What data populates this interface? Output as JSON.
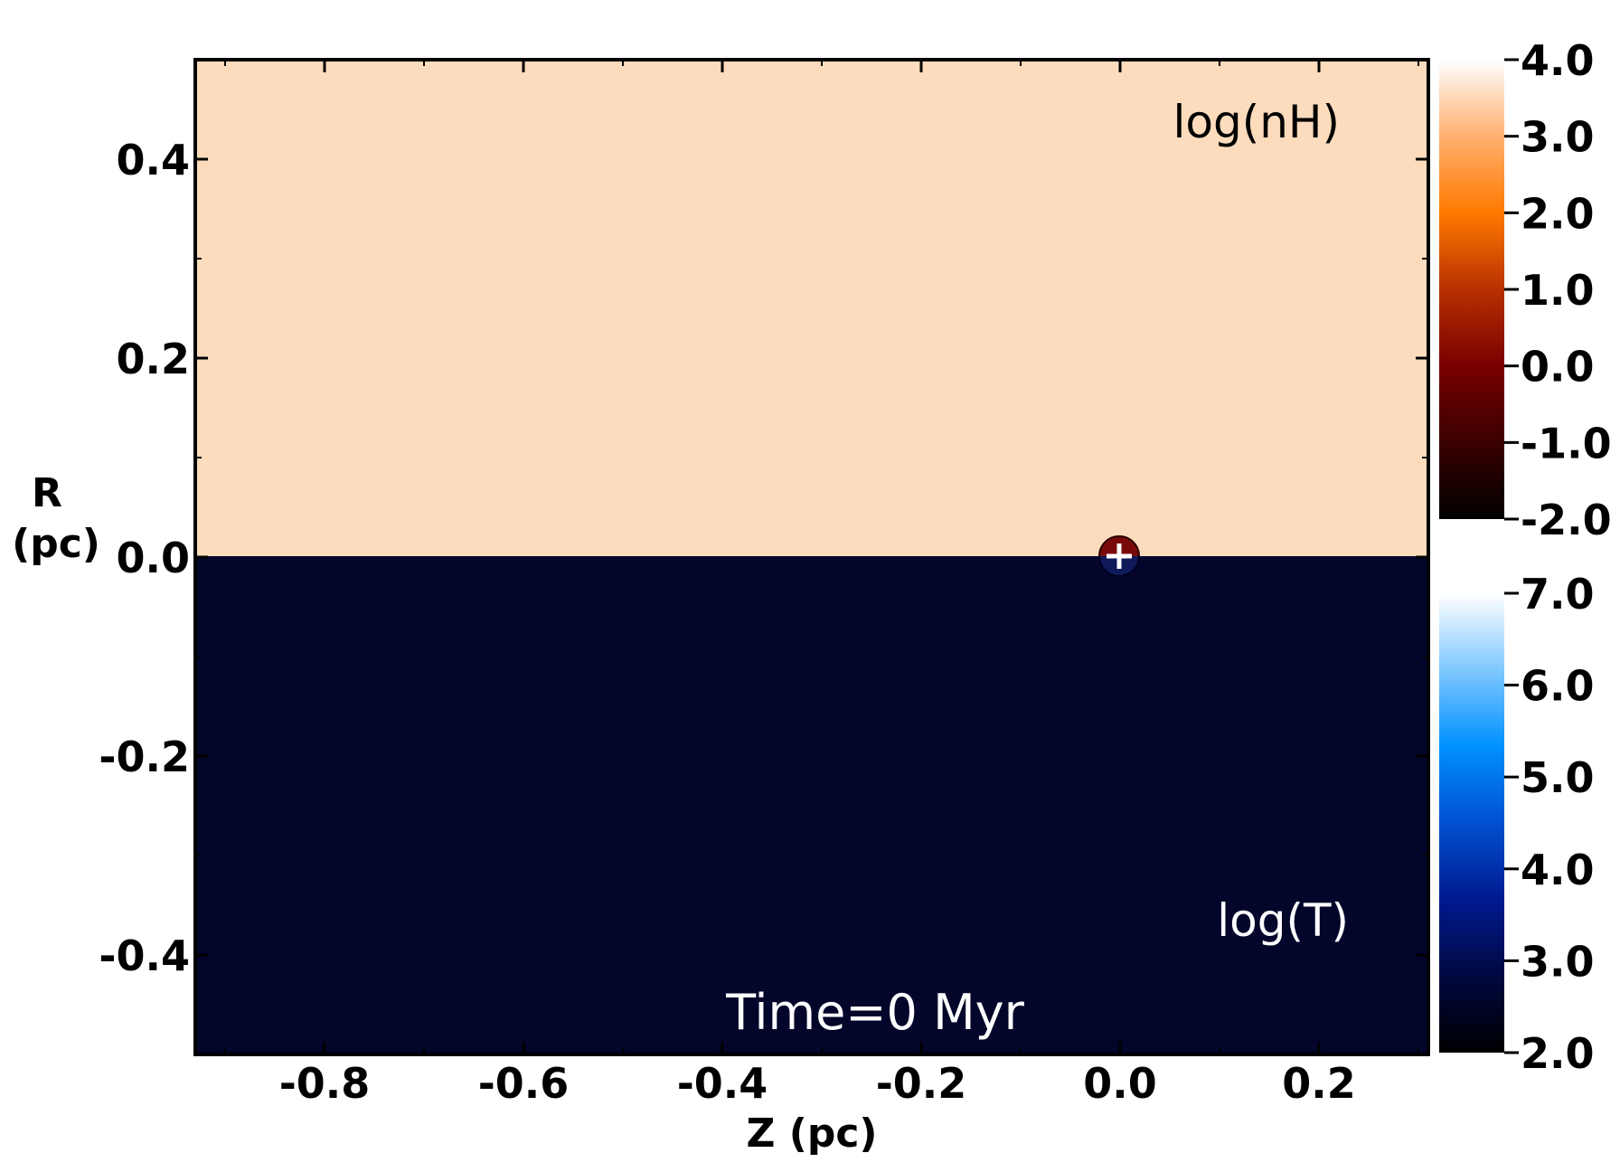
{
  "chart_data": {
    "type": "heatmap",
    "xlabel": "Z (pc)",
    "ylabel_line1": "R",
    "ylabel_line2": "(pc)",
    "xlim": [
      -0.93,
      0.31
    ],
    "ylim": [
      -0.5,
      0.5
    ],
    "xticks": [
      -0.8,
      -0.6,
      -0.4,
      -0.2,
      0.0,
      0.2
    ],
    "xtick_labels": [
      "-0.8",
      "-0.6",
      "-0.4",
      "-0.2",
      "0.0",
      "0.2"
    ],
    "yticks": [
      0.4,
      0.2,
      0.0,
      -0.2,
      -0.4
    ],
    "ytick_labels": [
      "0.4",
      "0.2",
      "0.0",
      "-0.2",
      "-0.4"
    ],
    "annotation": "Time=0 Myr",
    "source_marker": {
      "z": 0.0,
      "r": 0.0
    },
    "panels": [
      {
        "field": "log(nH)",
        "half": "upper",
        "uniform_value": 3.25,
        "color": "#fcdcbc"
      },
      {
        "field": "log(T)",
        "half": "lower",
        "uniform_value": 2.8,
        "color": "#03052a"
      }
    ],
    "colorbars": [
      {
        "label": "log(nH)",
        "range": [
          -2.0,
          4.0
        ],
        "tick_labels": [
          "4.0",
          "3.0",
          "2.0",
          "1.0",
          "0.0",
          "-1.0",
          "-2.0"
        ],
        "tick_values": [
          4.0,
          3.0,
          2.0,
          1.0,
          0.0,
          -1.0,
          -2.0
        ],
        "colormap": [
          "#000000",
          "#3a0000",
          "#7a0000",
          "#b83000",
          "#ff7a00",
          "#ffb070",
          "#ffffff"
        ]
      },
      {
        "label": "log(T)",
        "range": [
          2.0,
          7.0
        ],
        "tick_labels": [
          "7.0",
          "6.0",
          "5.0",
          "4.0",
          "3.0",
          "2.0"
        ],
        "tick_values": [
          7.0,
          6.0,
          5.0,
          4.0,
          3.0,
          2.0
        ],
        "colormap": [
          "#000000",
          "#000840",
          "#001a90",
          "#0050d0",
          "#0090ff",
          "#80c8ff",
          "#ffffff"
        ]
      }
    ]
  }
}
